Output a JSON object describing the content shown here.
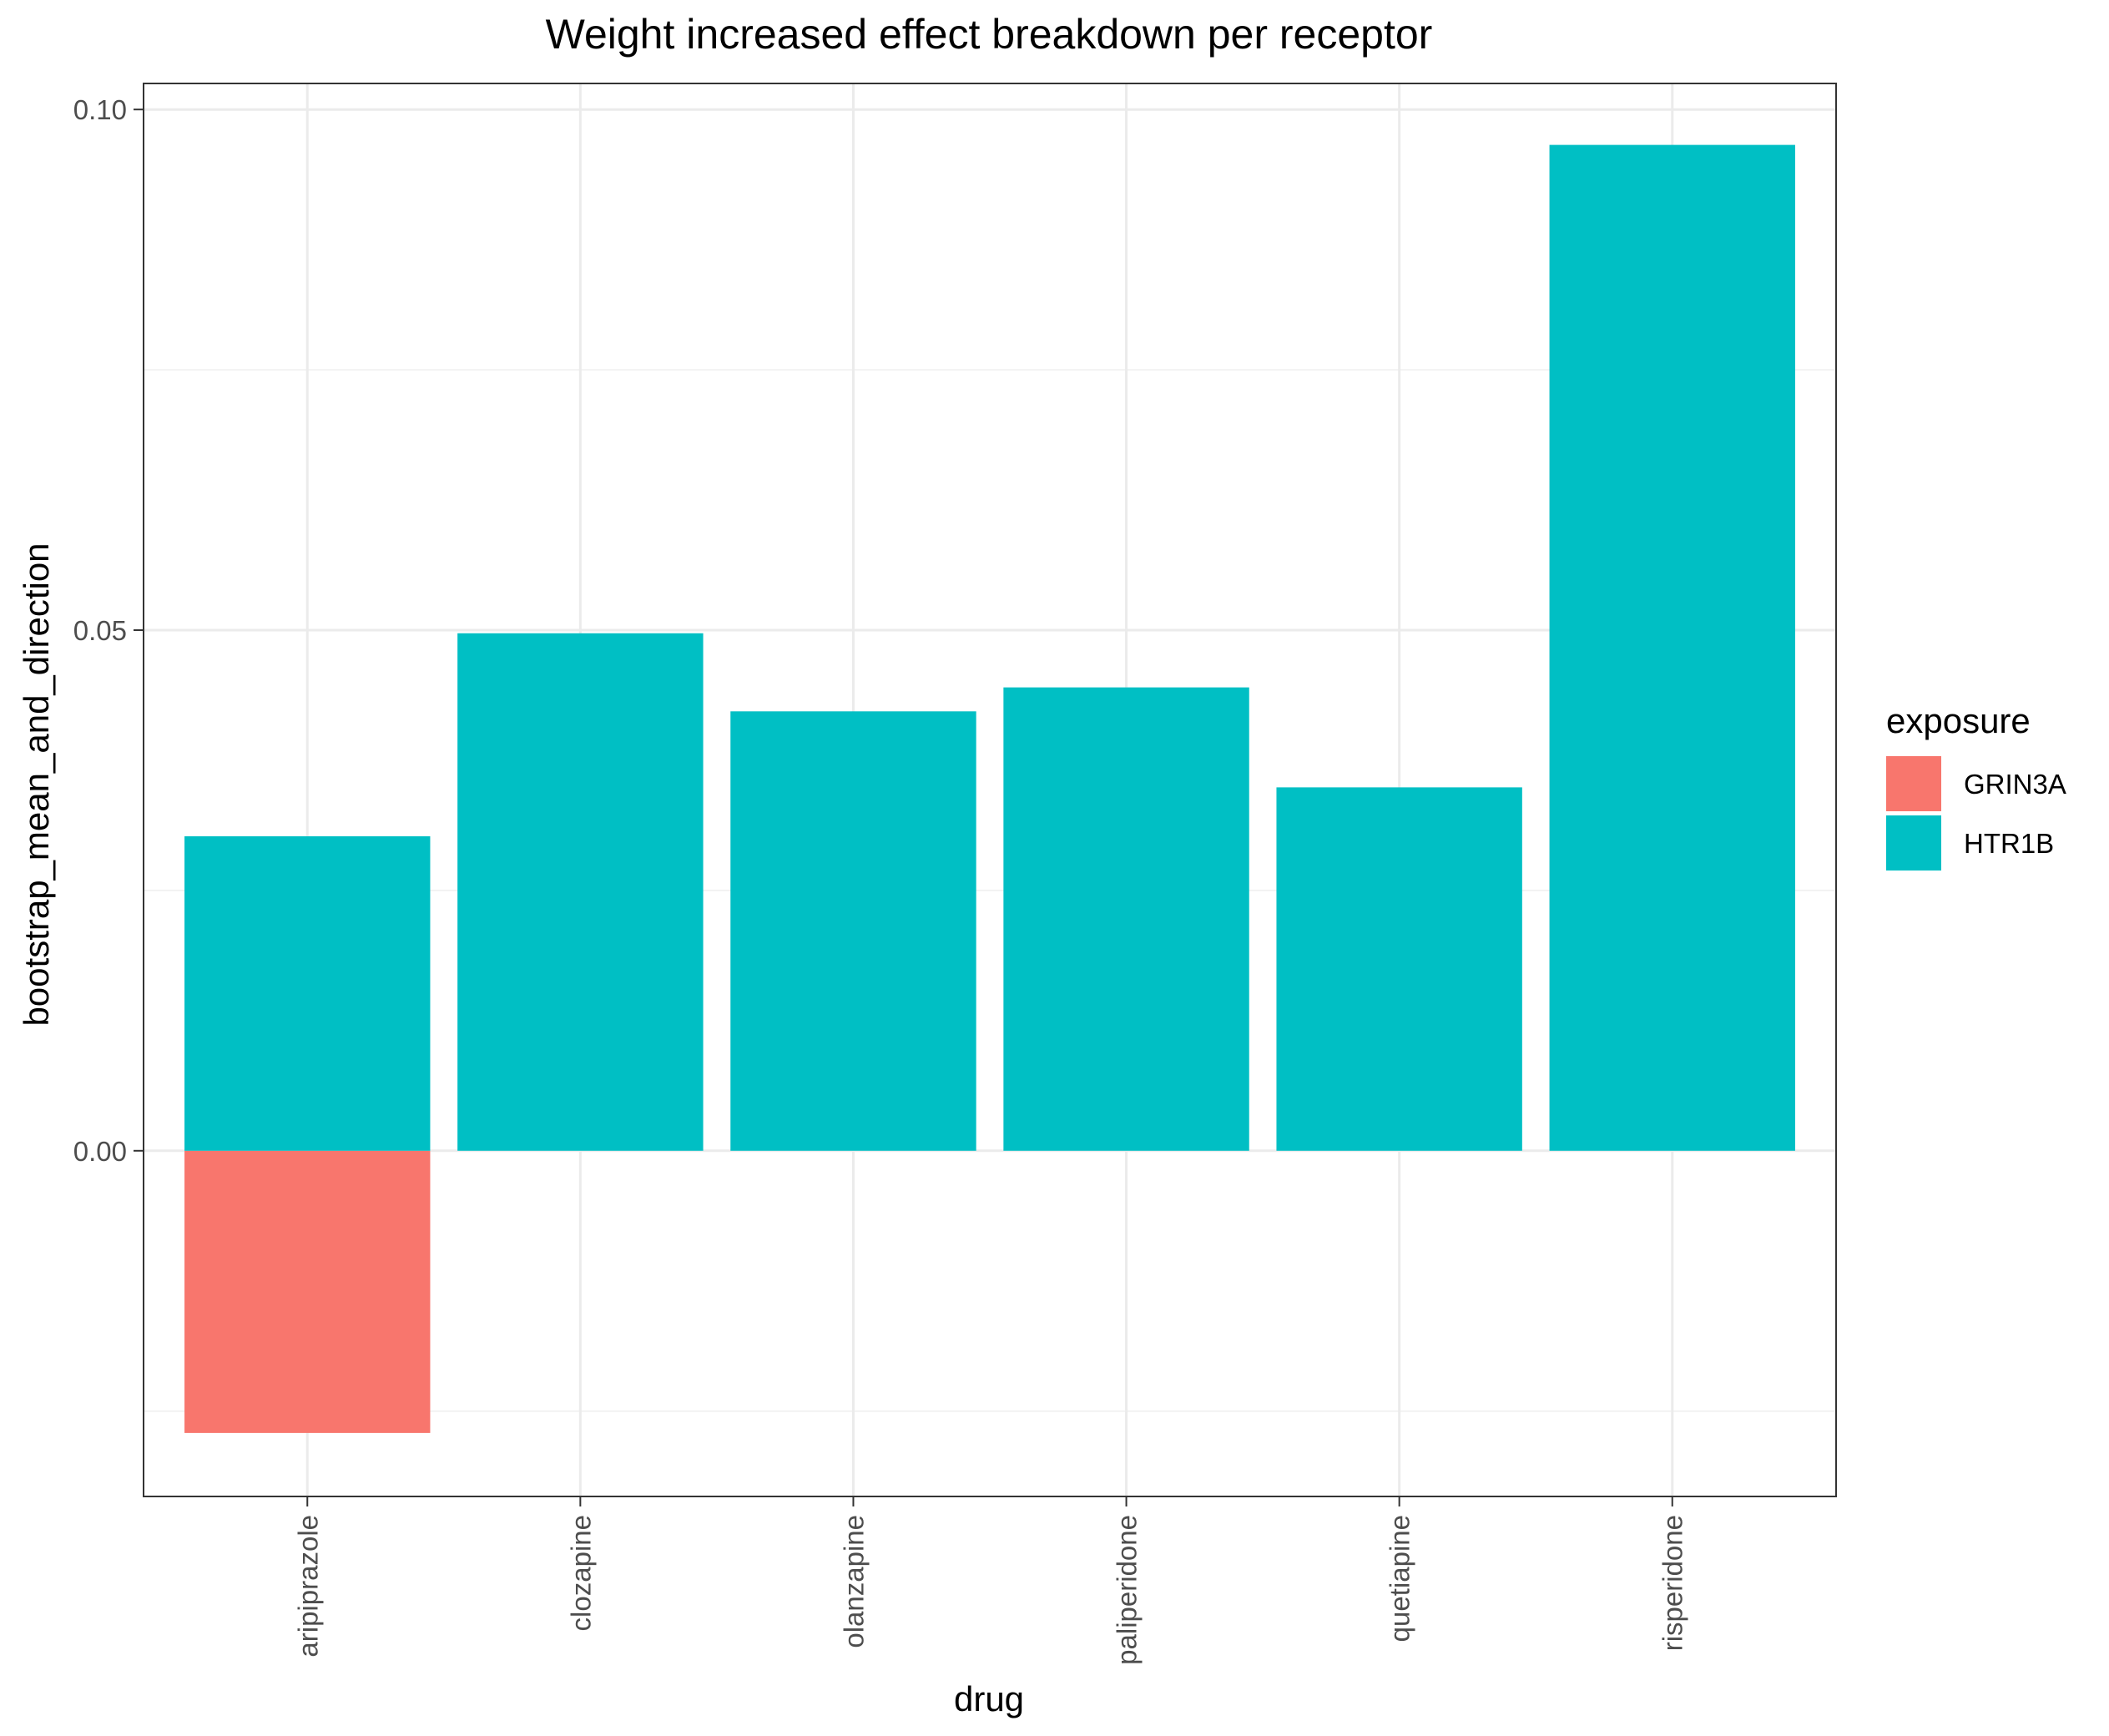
{
  "chart_data": {
    "type": "bar",
    "stacked": true,
    "title": "Weight increased effect breakdown per receptor",
    "xlabel": "drug",
    "ylabel": "bootstrap_mean_and_direction",
    "categories": [
      "aripiprazole",
      "clozapine",
      "olanzapine",
      "paliperidone",
      "quetiapine",
      "risperidone"
    ],
    "series": [
      {
        "name": "GRIN3A",
        "color": "#F8766D",
        "values": [
          -0.0271,
          0,
          0,
          0,
          0,
          0
        ]
      },
      {
        "name": "HTR1B",
        "color": "#00BFC4",
        "values": [
          0.0302,
          0.0497,
          0.0422,
          0.0445,
          0.0349,
          0.0966
        ]
      }
    ],
    "ylim": [
      -0.0332,
      0.1025
    ],
    "yticks": [
      0.0,
      0.05,
      0.1
    ],
    "ytick_labels": [
      "0.00",
      "0.05",
      "0.10"
    ],
    "legend": {
      "title": "exposure",
      "position": "right"
    },
    "grid": true,
    "theme": "bw"
  }
}
